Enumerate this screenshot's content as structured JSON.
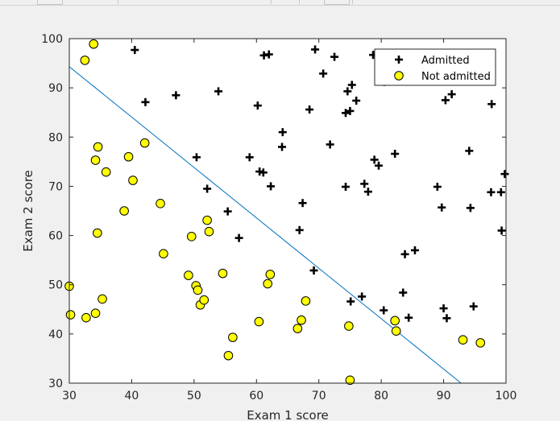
{
  "chart_data": {
    "type": "scatter",
    "title": "",
    "xlabel": "Exam 1 score",
    "ylabel": "Exam 2 score",
    "xlim": [
      30,
      100
    ],
    "ylim": [
      30,
      100
    ],
    "xticks": [
      "30",
      "40",
      "50",
      "60",
      "70",
      "80",
      "90",
      "100"
    ],
    "yticks": [
      "30",
      "40",
      "50",
      "60",
      "70",
      "80",
      "90",
      "100"
    ],
    "grid": false,
    "legend_position": "top-right",
    "colors": {
      "admitted_marker": "#000000",
      "not_admitted_fill": "#ffff00",
      "not_admitted_edge": "#000000",
      "boundary_line": "#0072bd",
      "axes_bg": "#ffffff",
      "figure_bg": "#f0f0f0"
    },
    "series": [
      {
        "name": "Admitted",
        "marker": "plus",
        "points": [
          [
            40.5,
            97.7
          ],
          [
            42.2,
            87.1
          ],
          [
            47.1,
            88.5
          ],
          [
            50.4,
            75.9
          ],
          [
            52.1,
            69.5
          ],
          [
            53.9,
            89.3
          ],
          [
            55.4,
            64.9
          ],
          [
            57.2,
            59.5
          ],
          [
            58.9,
            75.9
          ],
          [
            60.2,
            86.4
          ],
          [
            60.5,
            73.0
          ],
          [
            61.1,
            72.8
          ],
          [
            61.2,
            96.6
          ],
          [
            62.0,
            96.8
          ],
          [
            62.3,
            70.0
          ],
          [
            64.1,
            78.0
          ],
          [
            64.2,
            81.0
          ],
          [
            66.9,
            61.1
          ],
          [
            67.4,
            66.6
          ],
          [
            68.5,
            85.6
          ],
          [
            69.2,
            52.9
          ],
          [
            69.4,
            97.8
          ],
          [
            70.7,
            92.9
          ],
          [
            71.8,
            78.5
          ],
          [
            72.5,
            96.3
          ],
          [
            74.3,
            84.9
          ],
          [
            74.3,
            69.9
          ],
          [
            74.6,
            89.3
          ],
          [
            75.0,
            85.3
          ],
          [
            75.1,
            46.6
          ],
          [
            75.3,
            90.6
          ],
          [
            76.0,
            87.4
          ],
          [
            76.9,
            47.6
          ],
          [
            77.3,
            70.5
          ],
          [
            77.9,
            68.9
          ],
          [
            78.7,
            96.7
          ],
          [
            78.9,
            75.4
          ],
          [
            79.6,
            74.2
          ],
          [
            80.4,
            44.8
          ],
          [
            80.5,
            91.2
          ],
          [
            82.2,
            76.6
          ],
          [
            83.5,
            48.4
          ],
          [
            83.8,
            56.2
          ],
          [
            84.4,
            43.3
          ],
          [
            85.4,
            57.0
          ],
          [
            89.0,
            69.9
          ],
          [
            89.7,
            65.7
          ],
          [
            90.0,
            45.2
          ],
          [
            90.3,
            87.5
          ],
          [
            90.5,
            43.2
          ],
          [
            91.3,
            88.7
          ],
          [
            94.1,
            77.2
          ],
          [
            94.3,
            65.6
          ],
          [
            94.8,
            45.6
          ],
          [
            97.6,
            68.8
          ],
          [
            97.7,
            86.7
          ],
          [
            99.2,
            68.8
          ],
          [
            99.3,
            61.0
          ],
          [
            99.8,
            72.5
          ]
        ]
      },
      {
        "name": "Not admitted",
        "marker": "circle",
        "points": [
          [
            30.0,
            49.7
          ],
          [
            30.2,
            43.9
          ],
          [
            32.5,
            95.6
          ],
          [
            32.7,
            43.3
          ],
          [
            33.9,
            98.9
          ],
          [
            34.2,
            44.2
          ],
          [
            34.2,
            75.3
          ],
          [
            34.5,
            60.5
          ],
          [
            34.6,
            78.0
          ],
          [
            35.3,
            47.1
          ],
          [
            35.9,
            72.9
          ],
          [
            38.8,
            65.0
          ],
          [
            39.5,
            76.0
          ],
          [
            40.2,
            71.2
          ],
          [
            42.1,
            78.8
          ],
          [
            44.6,
            66.5
          ],
          [
            45.1,
            56.3
          ],
          [
            49.1,
            51.9
          ],
          [
            49.6,
            59.8
          ],
          [
            50.3,
            49.8
          ],
          [
            50.6,
            48.9
          ],
          [
            51.0,
            45.9
          ],
          [
            51.6,
            46.9
          ],
          [
            52.1,
            63.1
          ],
          [
            52.4,
            60.8
          ],
          [
            54.6,
            52.3
          ],
          [
            55.5,
            35.6
          ],
          [
            56.2,
            39.3
          ],
          [
            60.4,
            42.5
          ],
          [
            61.8,
            50.2
          ],
          [
            62.2,
            52.1
          ],
          [
            66.6,
            41.1
          ],
          [
            67.2,
            42.8
          ],
          [
            67.9,
            46.7
          ],
          [
            74.8,
            41.6
          ],
          [
            75.0,
            30.6
          ],
          [
            82.2,
            42.7
          ],
          [
            82.4,
            40.6
          ],
          [
            93.1,
            38.8
          ],
          [
            95.9,
            38.2
          ]
        ]
      }
    ],
    "decision_boundary": {
      "x": [
        30,
        92.8
      ],
      "y": [
        94.3,
        30
      ]
    }
  }
}
